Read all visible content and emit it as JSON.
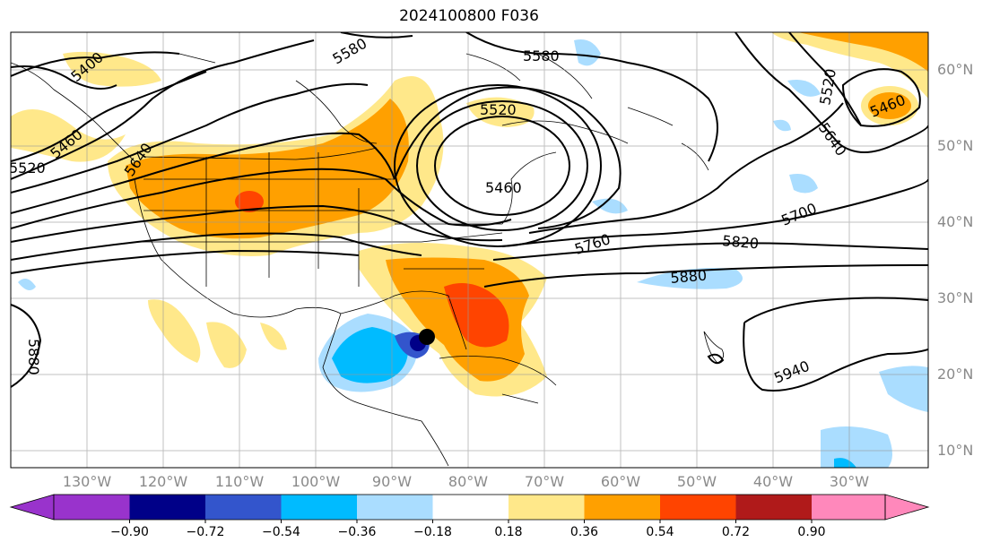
{
  "title": "2024100800 F036",
  "lat_labels": [
    "60°N",
    "50°N",
    "40°N",
    "30°N",
    "20°N",
    "10°N"
  ],
  "lon_labels": [
    "130°W",
    "120°W",
    "110°W",
    "100°W",
    "90°W",
    "80°W",
    "70°W",
    "60°W",
    "50°W",
    "40°W",
    "30°W"
  ],
  "colorbar": {
    "ticks": [
      "−0.90",
      "−0.72",
      "−0.54",
      "−0.36",
      "−0.18",
      "0.18",
      "0.36",
      "0.54",
      "0.72",
      "0.90"
    ],
    "colors": [
      "#9933cc",
      "#000088",
      "#3355cc",
      "#00bbff",
      "#aaddff",
      "#ffffff",
      "#ffe88a",
      "#ffa000",
      "#ff4400",
      "#b01a1a",
      "#ff88bb"
    ]
  },
  "contour_labels": {
    "c5400": "5400",
    "c5580a": "5580",
    "c5580b": "5580",
    "c5520a": "5520",
    "c5520b": "5520",
    "c5460a": "5460",
    "c5460b": "5460",
    "c5460c": "5460",
    "c5640a": "5640",
    "c5640b": "5640",
    "c5520c": "5520",
    "c5700": "5700",
    "c5760": "5760",
    "c5820": "5820",
    "c5880a": "5880",
    "c5880b": "5880",
    "c5940": "5940"
  }
}
